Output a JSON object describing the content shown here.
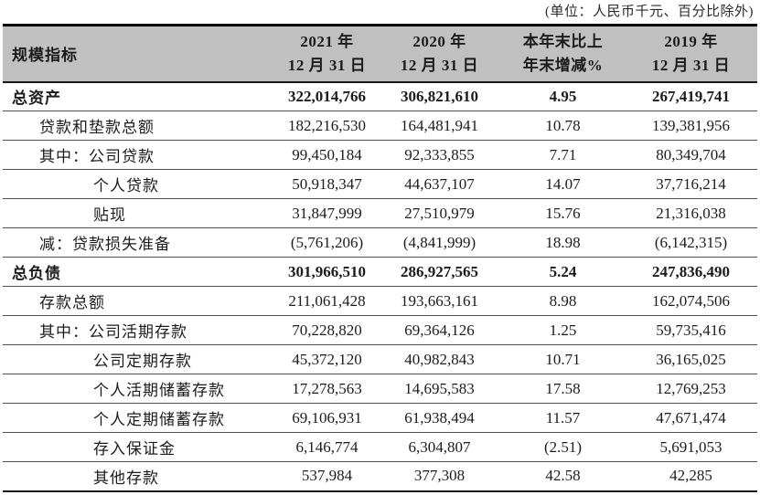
{
  "note": "(单位：人民币千元、百分比除外)",
  "colors": {
    "header_bg": "#c0c0c0",
    "text": "#1c1c1c",
    "border_heavy": "#000000",
    "border_light": "#4d4d4d"
  },
  "table": {
    "header": {
      "col0": "规模指标",
      "cols": [
        {
          "line1": "2021 年",
          "line2": "12 月 31 日"
        },
        {
          "line1": "2020 年",
          "line2": "12 月 31 日"
        },
        {
          "line1": "本年末比上",
          "line2": "年末增减%"
        },
        {
          "line1": "2019 年",
          "line2": "12 月 31 日"
        }
      ]
    },
    "rows": [
      {
        "label": "总资产",
        "indent": 0,
        "bold": true,
        "values": [
          "322,014,766",
          "306,821,610",
          "4.95",
          "267,419,741"
        ]
      },
      {
        "label": "贷款和垫款总额",
        "indent": 1,
        "bold": false,
        "values": [
          "182,216,530",
          "164,481,941",
          "10.78",
          "139,381,956"
        ]
      },
      {
        "label": "其中：公司贷款",
        "indent": 1,
        "bold": false,
        "values": [
          "99,450,184",
          "92,333,855",
          "7.71",
          "80,349,704"
        ]
      },
      {
        "label": "个人贷款",
        "indent": 2,
        "bold": false,
        "values": [
          "50,918,347",
          "44,637,107",
          "14.07",
          "37,716,214"
        ]
      },
      {
        "label": "贴现",
        "indent": 2,
        "bold": false,
        "values": [
          "31,847,999",
          "27,510,979",
          "15.76",
          "21,316,038"
        ]
      },
      {
        "label": "减：贷款损失准备",
        "indent": 1,
        "bold": false,
        "values": [
          "(5,761,206)",
          "(4,841,999)",
          "18.98",
          "(6,142,315)"
        ]
      },
      {
        "label": "总负债",
        "indent": 0,
        "bold": true,
        "values": [
          "301,966,510",
          "286,927,565",
          "5.24",
          "247,836,490"
        ]
      },
      {
        "label": "存款总额",
        "indent": 1,
        "bold": false,
        "values": [
          "211,061,428",
          "193,663,161",
          "8.98",
          "162,074,506"
        ]
      },
      {
        "label": "其中：公司活期存款",
        "indent": 1,
        "bold": false,
        "values": [
          "70,228,820",
          "69,364,126",
          "1.25",
          "59,735,416"
        ]
      },
      {
        "label": "公司定期存款",
        "indent": 2,
        "bold": false,
        "values": [
          "45,372,120",
          "40,982,843",
          "10.71",
          "36,165,025"
        ]
      },
      {
        "label": "个人活期储蓄存款",
        "indent": 2,
        "bold": false,
        "values": [
          "17,278,563",
          "14,695,583",
          "17.58",
          "12,769,253"
        ]
      },
      {
        "label": "个人定期储蓄存款",
        "indent": 2,
        "bold": false,
        "values": [
          "69,106,931",
          "61,938,494",
          "11.57",
          "47,671,474"
        ]
      },
      {
        "label": "存入保证金",
        "indent": 2,
        "bold": false,
        "values": [
          "6,146,774",
          "6,304,807",
          "(2.51)",
          "5,691,053"
        ]
      },
      {
        "label": "其他存款",
        "indent": 2,
        "bold": false,
        "values": [
          "537,984",
          "377,308",
          "42.58",
          "42,285"
        ]
      }
    ]
  }
}
